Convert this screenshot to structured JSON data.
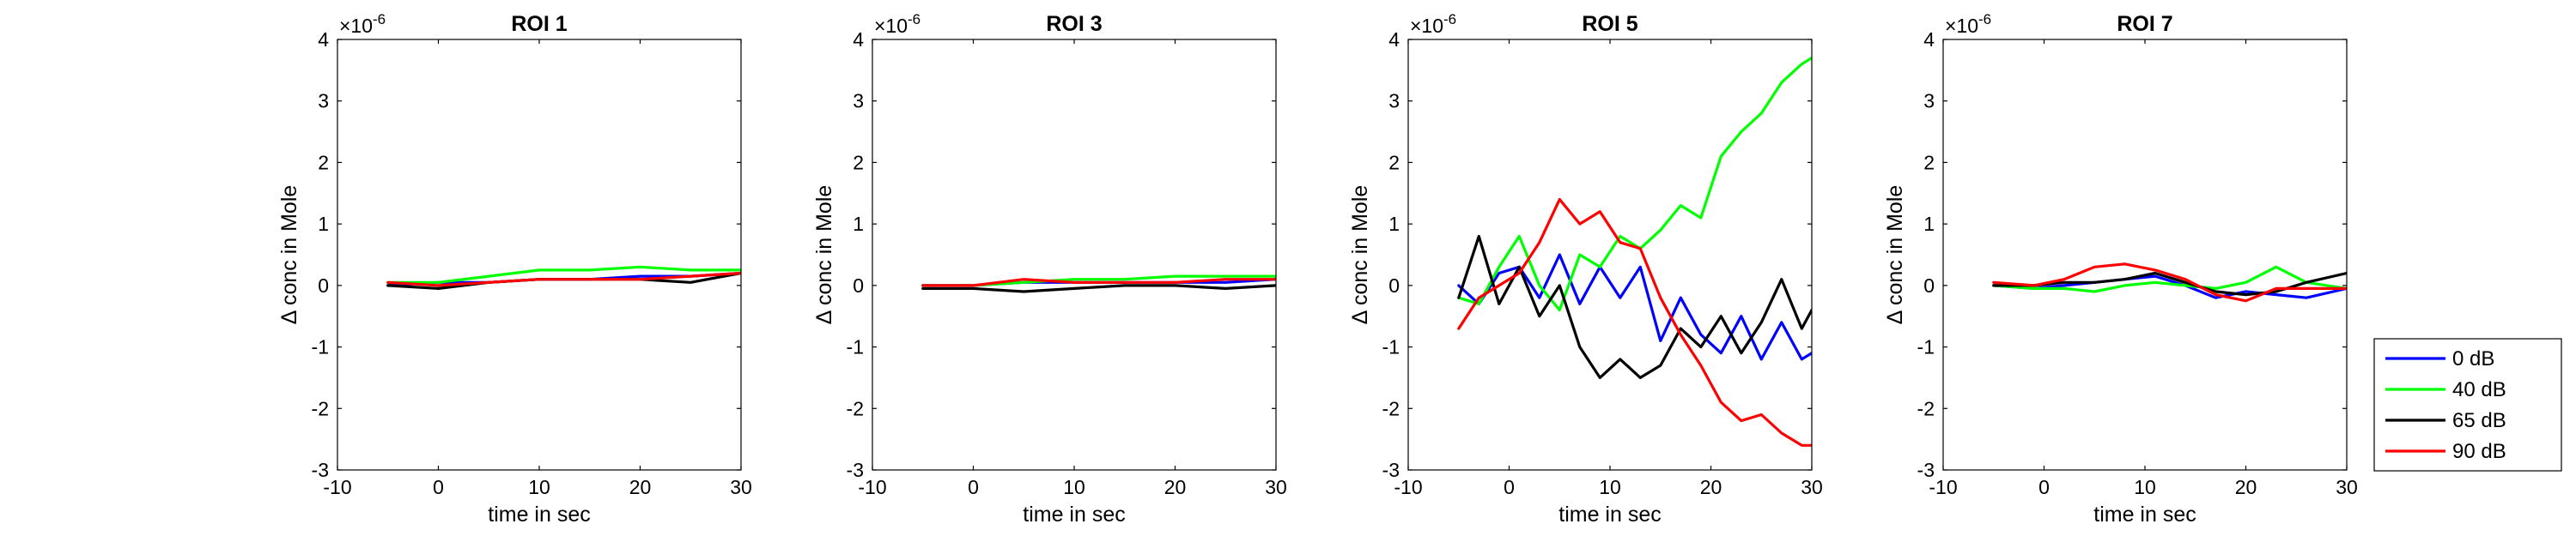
{
  "legend": {
    "placement": "right-outside",
    "entries": [
      {
        "label": "0 dB",
        "color": "#0000ff"
      },
      {
        "label": "40 dB",
        "color": "#00ff00"
      },
      {
        "label": "65 dB",
        "color": "#000000"
      },
      {
        "label": "90 dB",
        "color": "#ff0000"
      }
    ]
  },
  "chart_data": [
    {
      "type": "line",
      "title": "ROI 1",
      "xlabel": "time in sec",
      "ylabel": "Δ conc in Mole",
      "exponent_label": "×10",
      "exponent_power": "-6",
      "xlim": [
        -10,
        30
      ],
      "ylim": [
        -3,
        4
      ],
      "xticks": [
        -10,
        0,
        10,
        20,
        30
      ],
      "yticks": [
        -3,
        -2,
        -1,
        0,
        1,
        2,
        3,
        4
      ],
      "grid": false,
      "x": [
        -5,
        0,
        5,
        10,
        15,
        20,
        25,
        30
      ],
      "series": [
        {
          "name": "0 dB",
          "values": [
            0.0,
            0.05,
            0.05,
            0.1,
            0.1,
            0.15,
            0.15,
            0.2
          ]
        },
        {
          "name": "40 dB",
          "values": [
            0.05,
            0.05,
            0.15,
            0.25,
            0.25,
            0.3,
            0.25,
            0.25
          ]
        },
        {
          "name": "65 dB",
          "values": [
            0.0,
            -0.05,
            0.05,
            0.1,
            0.1,
            0.1,
            0.05,
            0.2
          ]
        },
        {
          "name": "90 dB",
          "values": [
            0.05,
            0.0,
            0.05,
            0.1,
            0.1,
            0.1,
            0.15,
            0.2
          ]
        }
      ]
    },
    {
      "type": "line",
      "title": "ROI 3",
      "xlabel": "time in sec",
      "ylabel": "Δ conc in Mole",
      "exponent_label": "×10",
      "exponent_power": "-6",
      "xlim": [
        -10,
        30
      ],
      "ylim": [
        -3,
        4
      ],
      "xticks": [
        -10,
        0,
        10,
        20,
        30
      ],
      "yticks": [
        -3,
        -2,
        -1,
        0,
        1,
        2,
        3,
        4
      ],
      "grid": false,
      "x": [
        -5,
        0,
        5,
        10,
        15,
        20,
        25,
        30
      ],
      "series": [
        {
          "name": "0 dB",
          "values": [
            0.0,
            0.0,
            0.05,
            0.05,
            0.05,
            0.05,
            0.05,
            0.1
          ]
        },
        {
          "name": "40 dB",
          "values": [
            0.0,
            0.0,
            0.05,
            0.1,
            0.1,
            0.15,
            0.15,
            0.15
          ]
        },
        {
          "name": "65 dB",
          "values": [
            -0.05,
            -0.05,
            -0.1,
            -0.05,
            0.0,
            0.0,
            -0.05,
            0.0
          ]
        },
        {
          "name": "90 dB",
          "values": [
            0.0,
            0.0,
            0.1,
            0.05,
            0.05,
            0.05,
            0.1,
            0.1
          ]
        }
      ]
    },
    {
      "type": "line",
      "title": "ROI 5",
      "xlabel": "time in sec",
      "ylabel": "Δ conc in Mole",
      "exponent_label": "×10",
      "exponent_power": "-6",
      "xlim": [
        -10,
        30
      ],
      "ylim": [
        -3,
        4
      ],
      "xticks": [
        -10,
        0,
        10,
        20,
        30
      ],
      "yticks": [
        -3,
        -2,
        -1,
        0,
        1,
        2,
        3,
        4
      ],
      "grid": false,
      "x": [
        -5,
        -3,
        -1,
        1,
        3,
        5,
        7,
        9,
        11,
        13,
        15,
        17,
        19,
        21,
        23,
        25,
        27,
        29,
        30
      ],
      "series": [
        {
          "name": "0 dB",
          "values": [
            0.0,
            -0.3,
            0.2,
            0.3,
            -0.2,
            0.5,
            -0.3,
            0.3,
            -0.2,
            0.3,
            -0.9,
            -0.2,
            -0.8,
            -1.1,
            -0.5,
            -1.2,
            -0.6,
            -1.2,
            -1.1
          ]
        },
        {
          "name": "40 dB",
          "values": [
            -0.2,
            -0.3,
            0.3,
            0.8,
            0.0,
            -0.4,
            0.5,
            0.3,
            0.8,
            0.6,
            0.9,
            1.3,
            1.1,
            2.1,
            2.5,
            2.8,
            3.3,
            3.6,
            3.7
          ]
        },
        {
          "name": "65 dB",
          "values": [
            -0.2,
            0.8,
            -0.3,
            0.3,
            -0.5,
            0.0,
            -1.0,
            -1.5,
            -1.2,
            -1.5,
            -1.3,
            -0.7,
            -1.0,
            -0.5,
            -1.1,
            -0.6,
            0.1,
            -0.7,
            -0.4
          ]
        },
        {
          "name": "90 dB",
          "values": [
            -0.7,
            -0.2,
            0.0,
            0.2,
            0.7,
            1.4,
            1.0,
            1.2,
            0.7,
            0.6,
            -0.2,
            -0.8,
            -1.3,
            -1.9,
            -2.2,
            -2.1,
            -2.4,
            -2.6,
            -2.6
          ]
        }
      ]
    },
    {
      "type": "line",
      "title": "ROI 7",
      "xlabel": "time in sec",
      "ylabel": "Δ conc in Mole",
      "exponent_label": "×10",
      "exponent_power": "-6",
      "xlim": [
        -10,
        30
      ],
      "ylim": [
        -3,
        4
      ],
      "xticks": [
        -10,
        0,
        10,
        20,
        30
      ],
      "yticks": [
        -3,
        -2,
        -1,
        0,
        1,
        2,
        3,
        4
      ],
      "grid": false,
      "x": [
        -5,
        -1,
        2,
        5,
        8,
        11,
        14,
        17,
        20,
        23,
        26,
        30
      ],
      "series": [
        {
          "name": "0 dB",
          "values": [
            0.0,
            -0.05,
            0.0,
            0.05,
            0.1,
            0.15,
            0.0,
            -0.2,
            -0.1,
            -0.15,
            -0.2,
            -0.05
          ]
        },
        {
          "name": "40 dB",
          "values": [
            0.0,
            -0.05,
            -0.05,
            -0.1,
            0.0,
            0.05,
            0.0,
            -0.05,
            0.05,
            0.3,
            0.05,
            -0.05
          ]
        },
        {
          "name": "65 dB",
          "values": [
            0.0,
            0.0,
            0.05,
            0.05,
            0.1,
            0.2,
            0.05,
            -0.1,
            -0.15,
            -0.1,
            0.05,
            0.2
          ]
        },
        {
          "name": "90 dB",
          "values": [
            0.05,
            0.0,
            0.1,
            0.3,
            0.35,
            0.25,
            0.1,
            -0.15,
            -0.25,
            -0.05,
            -0.05,
            -0.05
          ]
        }
      ]
    }
  ]
}
